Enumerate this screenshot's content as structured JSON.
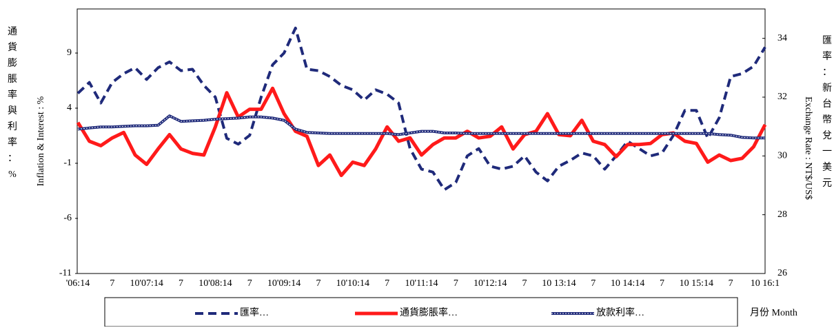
{
  "chart_data": {
    "type": "line",
    "y_label": "Inflation & Interest : %",
    "y_label_zh": "通貨膨脹率與利率：%",
    "y2_label": "Exchange Rate : NT$/US$",
    "y2_label_zh": "匯率：新台幣兌一美元",
    "x_label": "月份 Month",
    "categories": [
      "'06:14",
      null,
      null,
      "7",
      null,
      null,
      "10'07:14",
      null,
      null,
      "7",
      null,
      null,
      "10'08:14",
      null,
      null,
      "7",
      null,
      null,
      "10'09:14",
      null,
      null,
      "7",
      null,
      null,
      "10'10:14",
      null,
      null,
      "7",
      null,
      null,
      "10'11:14",
      null,
      null,
      "7",
      null,
      null,
      "10'12:14",
      null,
      null,
      "7",
      null,
      null,
      "10 13:14",
      null,
      null,
      "7",
      null,
      null,
      "10 14:14",
      null,
      null,
      "7",
      null,
      null,
      "10 15:14",
      null,
      null,
      "7",
      null,
      null,
      "10 16:1"
    ],
    "ylim": [
      -11,
      13
    ],
    "yticks": [
      -11,
      -6,
      -1,
      4,
      9
    ],
    "y2lim": [
      26,
      35
    ],
    "y2ticks": [
      26,
      28,
      30,
      32,
      34
    ],
    "series": [
      {
        "name": "匯率…",
        "color": "#1f2a7a",
        "style": "dashed",
        "axis": "y2",
        "values": [
          32.13,
          32.5,
          31.8,
          32.5,
          32.8,
          33.0,
          32.6,
          33.0,
          33.2,
          32.9,
          32.95,
          32.4,
          32.0,
          30.6,
          30.4,
          30.7,
          32.0,
          33.1,
          33.5,
          34.35,
          32.95,
          32.9,
          32.7,
          32.4,
          32.25,
          31.9,
          32.25,
          32.1,
          31.8,
          30.25,
          29.55,
          29.45,
          28.85,
          29.1,
          30.0,
          30.25,
          29.65,
          29.55,
          29.65,
          30.0,
          29.45,
          29.15,
          29.65,
          29.85,
          30.1,
          30.0,
          29.55,
          30.0,
          30.5,
          30.25,
          30.0,
          30.1,
          30.7,
          31.55,
          31.55,
          30.6,
          31.3,
          32.7,
          32.8,
          33.05,
          33.7
        ]
      },
      {
        "name": "通貨膨脹率…",
        "color": "#ff1a1a",
        "style": "solid",
        "values": [
          2.7,
          1.0,
          0.6,
          1.3,
          1.8,
          -0.25,
          -1.1,
          0.3,
          1.6,
          0.3,
          -0.1,
          -0.25,
          2.3,
          5.4,
          3.2,
          3.9,
          3.9,
          5.8,
          3.5,
          1.9,
          1.45,
          -1.2,
          -0.25,
          -2.1,
          -0.9,
          -1.2,
          0.3,
          2.3,
          1.0,
          1.3,
          -0.25,
          0.7,
          1.3,
          1.3,
          1.9,
          1.3,
          1.45,
          2.3,
          0.3,
          1.6,
          1.9,
          3.5,
          1.6,
          1.5,
          2.9,
          1.0,
          0.7,
          -0.4,
          0.7,
          0.7,
          0.8,
          1.6,
          1.75,
          1.0,
          0.8,
          -0.9,
          -0.25,
          -0.75,
          -0.55,
          0.5,
          2.5
        ]
      },
      {
        "name": "放款利率…",
        "color": "#1f2a7a",
        "style": "dotted",
        "values": [
          2.1,
          2.2,
          2.3,
          2.3,
          2.35,
          2.4,
          2.4,
          2.45,
          3.3,
          2.8,
          2.85,
          2.9,
          3.0,
          3.05,
          3.1,
          3.2,
          3.2,
          3.1,
          2.9,
          2.1,
          1.8,
          1.75,
          1.7,
          1.7,
          1.7,
          1.7,
          1.7,
          1.7,
          1.6,
          1.75,
          1.9,
          1.9,
          1.75,
          1.75,
          1.7,
          1.7,
          1.7,
          1.7,
          1.7,
          1.7,
          1.7,
          1.7,
          1.7,
          1.7,
          1.7,
          1.7,
          1.7,
          1.7,
          1.7,
          1.7,
          1.7,
          1.7,
          1.7,
          1.7,
          1.7,
          1.7,
          1.6,
          1.55,
          1.35,
          1.3,
          1.3
        ]
      }
    ]
  }
}
